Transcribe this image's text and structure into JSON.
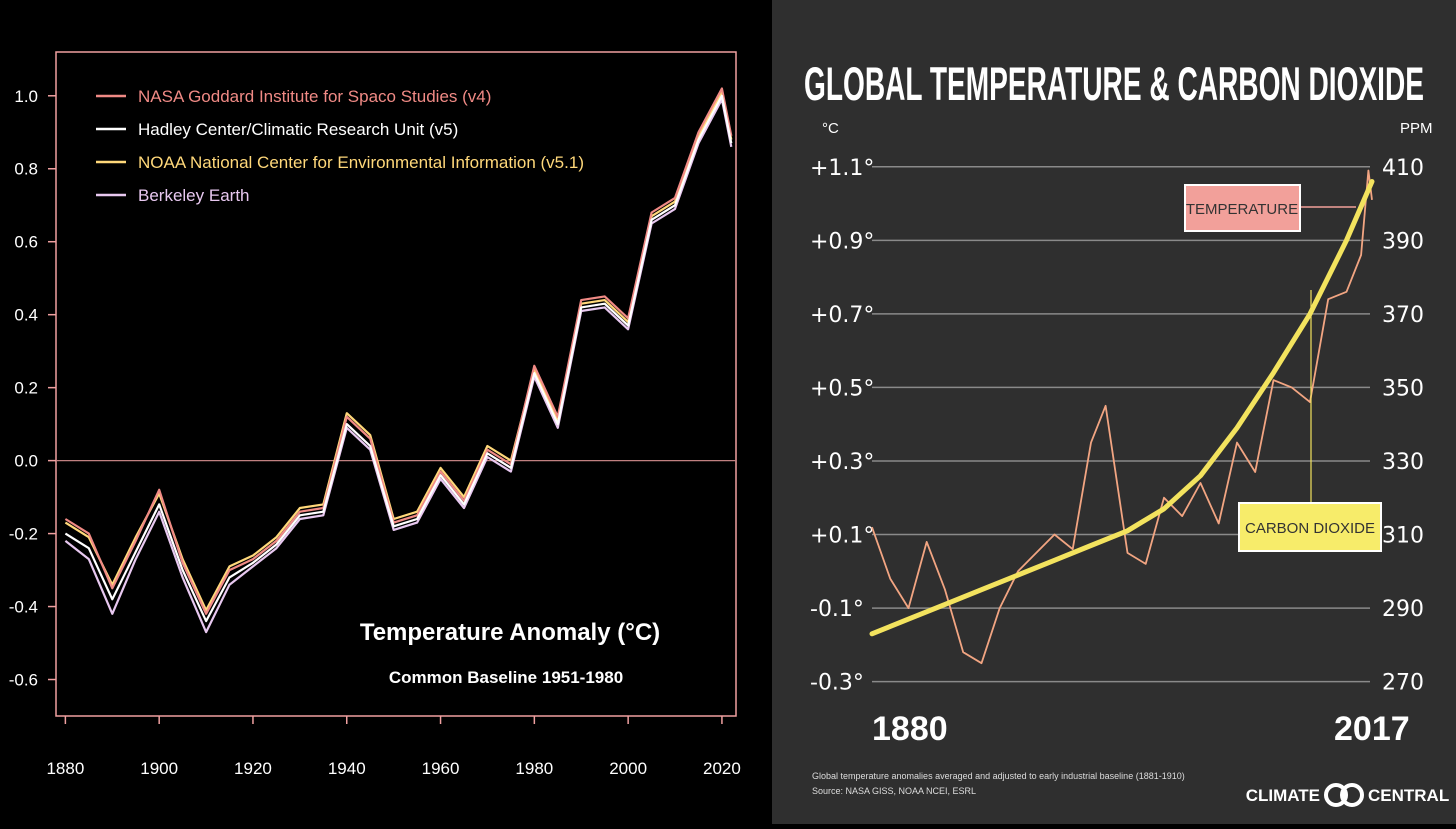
{
  "colors": {
    "giss": "#f08a85",
    "hadcrut": "#ffffff",
    "noaa": "#ffd87a",
    "berkeley": "#e8c8f0",
    "temperature": "#f2a582",
    "co2": "#f3e35e",
    "temp_label_bg": "#f2a09a",
    "co2_label_bg": "#f7ec6a"
  },
  "chart_data": [
    {
      "type": "line",
      "title": "Temperature Anomaly (°C)",
      "subtitle": "Common Baseline 1951-1980",
      "xlim": [
        1878,
        2023
      ],
      "ylim": [
        -0.7,
        1.12
      ],
      "xticks": [
        1880,
        1900,
        1920,
        1940,
        1960,
        1980,
        2000,
        2020
      ],
      "xtick_labels": [
        "1880",
        "1900",
        "1920",
        "1940",
        "1960",
        "1980",
        "2000",
        "2020"
      ],
      "yticks": [
        1.0,
        0.8,
        0.6,
        0.4,
        0.2,
        0.0,
        -0.2,
        -0.4,
        -0.6
      ],
      "ytick_labels": [
        "1.0",
        "0.8",
        "0.6",
        "0.4",
        "0.2",
        "0.0",
        "-0.2",
        "-0.4",
        "-0.6"
      ],
      "zero_line": 0.0,
      "legend_position": "top-left",
      "x": [
        1880,
        1885,
        1890,
        1895,
        1900,
        1905,
        1910,
        1915,
        1920,
        1925,
        1930,
        1935,
        1940,
        1945,
        1950,
        1955,
        1960,
        1965,
        1970,
        1975,
        1980,
        1985,
        1990,
        1995,
        2000,
        2005,
        2010,
        2015,
        2020,
        2022
      ],
      "series": [
        {
          "name": "NASA Goddard Institute for Spaco Studies (v4)",
          "color_key": "giss",
          "values": [
            -0.16,
            -0.2,
            -0.35,
            -0.22,
            -0.08,
            -0.28,
            -0.42,
            -0.3,
            -0.27,
            -0.22,
            -0.14,
            -0.13,
            0.12,
            0.06,
            -0.17,
            -0.15,
            -0.03,
            -0.11,
            0.03,
            -0.01,
            0.26,
            0.12,
            0.44,
            0.45,
            0.39,
            0.68,
            0.72,
            0.9,
            1.02,
            0.89
          ]
        },
        {
          "name": "Hadley Center/Climatic Research Unit (v5)",
          "color_key": "hadcrut",
          "values": [
            -0.2,
            -0.24,
            -0.38,
            -0.25,
            -0.12,
            -0.3,
            -0.44,
            -0.32,
            -0.28,
            -0.23,
            -0.15,
            -0.14,
            0.1,
            0.04,
            -0.18,
            -0.16,
            -0.04,
            -0.12,
            0.02,
            -0.02,
            0.24,
            0.1,
            0.42,
            0.43,
            0.37,
            0.66,
            0.7,
            0.88,
            1.0,
            0.87
          ]
        },
        {
          "name": "NOAA National Center for Environmental Information (v5.1)",
          "color_key": "noaa",
          "values": [
            -0.17,
            -0.21,
            -0.34,
            -0.21,
            -0.09,
            -0.27,
            -0.41,
            -0.29,
            -0.26,
            -0.21,
            -0.13,
            -0.12,
            0.13,
            0.07,
            -0.16,
            -0.14,
            -0.02,
            -0.1,
            0.04,
            0.0,
            0.25,
            0.11,
            0.43,
            0.44,
            0.38,
            0.67,
            0.71,
            0.89,
            1.01,
            0.88
          ]
        },
        {
          "name": "Berkeley Earth",
          "color_key": "berkeley",
          "values": [
            -0.22,
            -0.27,
            -0.42,
            -0.27,
            -0.14,
            -0.32,
            -0.47,
            -0.34,
            -0.29,
            -0.24,
            -0.16,
            -0.15,
            0.09,
            0.03,
            -0.19,
            -0.17,
            -0.05,
            -0.13,
            0.01,
            -0.03,
            0.23,
            0.09,
            0.41,
            0.42,
            0.36,
            0.65,
            0.69,
            0.87,
            0.99,
            0.86
          ]
        }
      ]
    },
    {
      "type": "line",
      "title": "GLOBAL TEMPERATURE & CARBON DIOXIDE",
      "y_left_unit": "°C",
      "y_right_unit": "PPM",
      "xlim": [
        1880,
        2017
      ],
      "ylim_left": [
        -0.35,
        1.2
      ],
      "ylim_right": [
        270,
        410
      ],
      "yticks_left": [
        1.1,
        0.9,
        0.7,
        0.5,
        0.3,
        0.1,
        -0.1,
        -0.3
      ],
      "ytick_labels_left": [
        "+1.1°",
        "+0.9°",
        "+0.7°",
        "+0.5°",
        "+0.3°",
        "+0.1°",
        "-0.1°",
        "-0.3°"
      ],
      "yticks_right": [
        410,
        390,
        370,
        350,
        330,
        310,
        290,
        270
      ],
      "ytick_labels_right": [
        "410",
        "390",
        "370",
        "350",
        "330",
        "310",
        "290",
        "270"
      ],
      "xtick_labels": [
        "1880",
        "2017"
      ],
      "grid": true,
      "temperature": {
        "label": "TEMPERATURE",
        "x": [
          1880,
          1885,
          1890,
          1895,
          1900,
          1905,
          1910,
          1915,
          1920,
          1925,
          1930,
          1935,
          1940,
          1944,
          1950,
          1955,
          1960,
          1965,
          1970,
          1975,
          1980,
          1985,
          1990,
          1995,
          2000,
          2005,
          2010,
          2014,
          2016,
          2017
        ],
        "values": [
          0.12,
          -0.02,
          -0.1,
          0.08,
          -0.05,
          -0.22,
          -0.25,
          -0.1,
          0.0,
          0.05,
          0.1,
          0.06,
          0.35,
          0.45,
          0.05,
          0.02,
          0.2,
          0.15,
          0.24,
          0.13,
          0.35,
          0.27,
          0.52,
          0.5,
          0.46,
          0.74,
          0.76,
          0.86,
          1.09,
          1.01
        ]
      },
      "co2": {
        "label": "CARBON DIOXIDE",
        "x": [
          1880,
          1890,
          1900,
          1910,
          1920,
          1930,
          1940,
          1950,
          1960,
          1970,
          1980,
          1990,
          2000,
          2010,
          2017
        ],
        "values": [
          283,
          287,
          291,
          295,
          299,
          303,
          307,
          311,
          317,
          326,
          339,
          354,
          370,
          390,
          406
        ]
      },
      "footnote": "Global temperature anomalies averaged and adjusted to early industrial baseline (1881-1910)",
      "source": "Source: NASA GISS, NOAA NCEI, ESRL",
      "brand_left": "CLIMATE",
      "brand_right": "CENTRAL"
    }
  ]
}
